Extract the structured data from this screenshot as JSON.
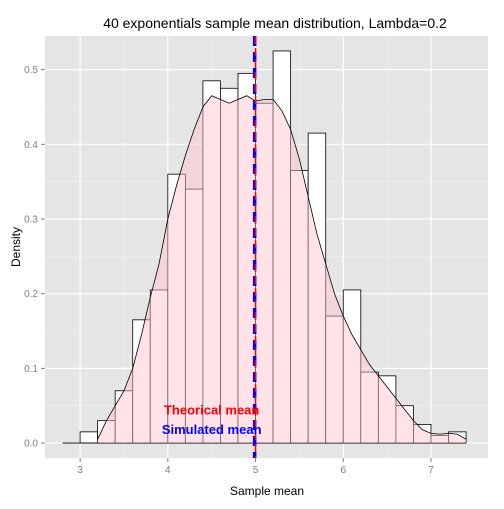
{
  "chart_data": {
    "type": "bar",
    "title": "40 exponentials sample mean distribution, Lambda=0.2",
    "xlabel": "Sample mean",
    "ylabel": "Density",
    "xlim": [
      2.6,
      7.65
    ],
    "ylim": [
      -0.02,
      0.545
    ],
    "x_ticks": [
      3,
      4,
      5,
      6,
      7
    ],
    "y_ticks": [
      0.0,
      0.1,
      0.2,
      0.3,
      0.4,
      0.5
    ],
    "grid": true,
    "histogram": {
      "bin_width": 0.2,
      "bin_starts": [
        3.0,
        3.2,
        3.4,
        3.6,
        3.8,
        4.0,
        4.2,
        4.4,
        4.6,
        4.8,
        5.0,
        5.2,
        5.4,
        5.6,
        5.8,
        6.0,
        6.2,
        6.4,
        6.6,
        6.8,
        7.0,
        7.2
      ],
      "values": [
        0.015,
        0.03,
        0.07,
        0.165,
        0.205,
        0.36,
        0.34,
        0.485,
        0.475,
        0.495,
        0.455,
        0.525,
        0.365,
        0.415,
        0.17,
        0.205,
        0.095,
        0.09,
        0.05,
        0.025,
        0.01,
        0.015
      ]
    },
    "density_curve": {
      "x": [
        3.2,
        3.3,
        3.4,
        3.5,
        3.6,
        3.7,
        3.8,
        3.9,
        4.0,
        4.1,
        4.2,
        4.3,
        4.4,
        4.5,
        4.6,
        4.7,
        4.8,
        4.9,
        5.0,
        5.1,
        5.2,
        5.3,
        5.4,
        5.5,
        5.6,
        5.7,
        5.8,
        5.9,
        6.0,
        6.1,
        6.2,
        6.3,
        6.4,
        6.5,
        6.6,
        6.7,
        6.8,
        6.9,
        7.0,
        7.1,
        7.2,
        7.3,
        7.4
      ],
      "y": [
        0.005,
        0.03,
        0.05,
        0.07,
        0.1,
        0.145,
        0.195,
        0.24,
        0.3,
        0.345,
        0.385,
        0.42,
        0.45,
        0.465,
        0.46,
        0.455,
        0.46,
        0.465,
        0.458,
        0.46,
        0.46,
        0.445,
        0.42,
        0.38,
        0.33,
        0.28,
        0.24,
        0.2,
        0.17,
        0.145,
        0.125,
        0.105,
        0.09,
        0.075,
        0.06,
        0.045,
        0.03,
        0.018,
        0.013,
        0.012,
        0.013,
        0.012,
        0.005
      ]
    },
    "theoretical_mean": 5.0,
    "simulated_mean": 4.99,
    "annotations": [
      {
        "text": "Theorical mean",
        "color": "#ff0000",
        "x": 4.5,
        "y": 0.038
      },
      {
        "text": "Simulated mean",
        "color": "#0000ff",
        "x": 4.5,
        "y": 0.012
      }
    ],
    "colors": {
      "panel": "#e5e5e5",
      "grid_major": "#ffffff",
      "grid_minor": "#f2f2f2",
      "bar_fill": "#ffffff",
      "bar_stroke": "#000000",
      "density_fill": "#ffc0cb",
      "density_fill_opacity": 0.45,
      "density_stroke": "#000000",
      "theoretical_line": "#ff0000",
      "simulated_line": "#0000ff",
      "tick_text": "#7f7f7f",
      "axis_title": "#000000"
    }
  }
}
